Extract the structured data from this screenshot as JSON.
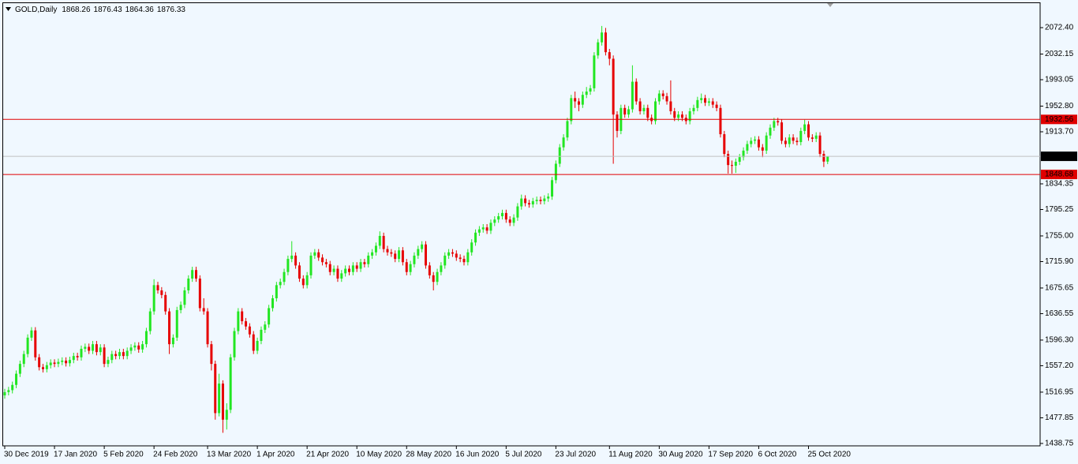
{
  "chart_data": {
    "type": "candlestick",
    "title": "GOLD,Daily",
    "ylim": [
      1435.1,
      2108.5
    ],
    "yticks": [
      {
        "value": 2072.4,
        "label": "2072.40"
      },
      2032.15,
      1993.05,
      {
        "value": 1952.8,
        "label": "1952.80"
      },
      {
        "value": 1913.7,
        "label": "1913.70"
      },
      1834.35,
      1795.25,
      {
        "value": 1755,
        "label": "1755.00"
      },
      {
        "value": 1715.9,
        "label": "1715.90"
      },
      1675.65,
      1636.55,
      {
        "value": 1596.3,
        "label": "1596.30"
      },
      {
        "value": 1557.2,
        "label": "1557.20"
      },
      1516.95,
      1477.85,
      1438.75
    ],
    "hlines": [
      {
        "value": 1932.56,
        "color": "#e00000"
      },
      {
        "value": 1848.68,
        "color": "#e00000"
      }
    ],
    "current_price_color": "#000000",
    "up_color": "#22e622",
    "down_color": "#e60000",
    "background": "#f0f8ff",
    "categories": [
      "30 Dec 2019",
      null,
      null,
      null,
      null,
      null,
      null,
      null,
      null,
      null,
      null,
      null,
      null,
      "17 Jan 2020",
      null,
      null,
      null,
      null,
      null,
      null,
      null,
      null,
      null,
      null,
      null,
      null,
      "5 Feb 2020",
      null,
      null,
      null,
      null,
      null,
      null,
      null,
      null,
      null,
      null,
      null,
      null,
      "24 Feb 2020",
      null,
      null,
      null,
      null,
      null,
      null,
      null,
      null,
      null,
      null,
      null,
      null,
      null,
      "13 Mar 2020",
      null,
      null,
      null,
      null,
      null,
      null,
      null,
      null,
      null,
      null,
      null,
      null,
      "1 Apr 2020",
      null,
      null,
      null,
      null,
      null,
      null,
      null,
      null,
      null,
      null,
      null,
      null,
      "21 Apr 2020",
      null,
      null,
      null,
      null,
      null,
      null,
      null,
      null,
      null,
      null,
      null,
      null,
      "10 May 2020",
      null,
      null,
      null,
      null,
      null,
      null,
      null,
      null,
      null,
      null,
      null,
      null,
      "28 May 2020",
      null,
      null,
      null,
      null,
      null,
      null,
      null,
      null,
      null,
      null,
      null,
      null,
      "16 Jun 2020",
      null,
      null,
      null,
      null,
      null,
      null,
      null,
      null,
      null,
      null,
      null,
      null,
      "5 Jul 2020",
      null,
      null,
      null,
      null,
      null,
      null,
      null,
      null,
      null,
      null,
      null,
      null,
      "23 Jul 2020",
      null,
      null,
      null,
      null,
      null,
      null,
      null,
      null,
      null,
      null,
      null,
      null,
      null,
      "11 Aug 2020",
      null,
      null,
      null,
      null,
      null,
      null,
      null,
      null,
      null,
      null,
      null,
      null,
      "30 Aug 2020",
      null,
      null,
      null,
      null,
      null,
      null,
      null,
      null,
      null,
      null,
      null,
      null,
      "17 Sep 2020",
      null,
      null,
      null,
      null,
      null,
      null,
      null,
      null,
      null,
      null,
      null,
      null,
      "6 Oct 2020",
      null,
      null,
      null,
      null,
      null,
      null,
      null,
      null,
      null,
      null,
      null,
      null,
      "25 Oct 2020",
      null,
      null,
      null,
      null,
      null
    ],
    "open": [
      1512,
      1517,
      1520,
      1528,
      1545,
      1560,
      1575,
      1600,
      1611,
      1570,
      1555,
      1552,
      1558,
      1562,
      1560,
      1563,
      1565,
      1561,
      1566,
      1572,
      1570,
      1583,
      1586,
      1580,
      1590,
      1578,
      1585,
      1560,
      1566,
      1575,
      1572,
      1578,
      1572,
      1580,
      1585,
      1588,
      1582,
      1590,
      1610,
      1640,
      1680,
      1672,
      1665,
      1640,
      1590,
      1600,
      1642,
      1650,
      1672,
      1690,
      1703,
      1690,
      1645,
      1640,
      1590,
      1560,
      1485,
      1530,
      1475,
      1490,
      1570,
      1610,
      1640,
      1625,
      1617,
      1605,
      1580,
      1595,
      1612,
      1620,
      1645,
      1660,
      1680,
      1685,
      1700,
      1720,
      1725,
      1710,
      1690,
      1680,
      1695,
      1725,
      1730,
      1722,
      1715,
      1712,
      1700,
      1705,
      1690,
      1698,
      1705,
      1700,
      1710,
      1705,
      1715,
      1712,
      1725,
      1730,
      1740,
      1755,
      1735,
      1730,
      1728,
      1720,
      1733,
      1715,
      1700,
      1712,
      1725,
      1735,
      1742,
      1710,
      1695,
      1685,
      1700,
      1710,
      1725,
      1730,
      1728,
      1722,
      1720,
      1715,
      1730,
      1745,
      1760,
      1765,
      1768,
      1763,
      1775,
      1780,
      1785,
      1790,
      1780,
      1775,
      1783,
      1800,
      1812,
      1805,
      1803,
      1808,
      1810,
      1808,
      1812,
      1815,
      1840,
      1865,
      1890,
      1905,
      1930,
      1965,
      1960,
      1955,
      1970,
      1975,
      1980,
      2030,
      2050,
      2065,
      2035,
      2025,
      1940,
      1915,
      1950,
      1940,
      1948,
      1990,
      1960,
      1945,
      1950,
      1935,
      1930,
      1960,
      1972,
      1968,
      1960,
      1945,
      1935,
      1940,
      1935,
      1930,
      1945,
      1950,
      1962,
      1965,
      1958,
      1960,
      1955,
      1950,
      1910,
      1880,
      1863,
      1862,
      1868,
      1875,
      1885,
      1895,
      1900,
      1902,
      1890,
      1885,
      1908,
      1920,
      1930,
      1928,
      1900,
      1895,
      1905,
      1900,
      1898,
      1915,
      1925,
      1905,
      1903,
      1908,
      1880,
      1868.26
    ],
    "high": [
      1522,
      1525,
      1533,
      1550,
      1565,
      1580,
      1605,
      1616,
      1616,
      1575,
      1560,
      1563,
      1567,
      1567,
      1568,
      1570,
      1570,
      1571,
      1577,
      1577,
      1588,
      1591,
      1591,
      1595,
      1595,
      1590,
      1590,
      1571,
      1580,
      1580,
      1583,
      1583,
      1585,
      1590,
      1593,
      1593,
      1595,
      1615,
      1645,
      1689,
      1685,
      1677,
      1670,
      1645,
      1605,
      1647,
      1655,
      1677,
      1695,
      1708,
      1708,
      1695,
      1660,
      1645,
      1595,
      1565,
      1545,
      1535,
      1500,
      1575,
      1615,
      1645,
      1645,
      1630,
      1622,
      1610,
      1600,
      1617,
      1625,
      1650,
      1665,
      1685,
      1690,
      1705,
      1725,
      1747,
      1730,
      1715,
      1695,
      1700,
      1730,
      1735,
      1735,
      1727,
      1720,
      1717,
      1710,
      1710,
      1703,
      1710,
      1710,
      1715,
      1715,
      1720,
      1720,
      1730,
      1735,
      1745,
      1762,
      1760,
      1740,
      1735,
      1733,
      1738,
      1738,
      1720,
      1717,
      1730,
      1740,
      1747,
      1747,
      1715,
      1700,
      1705,
      1715,
      1730,
      1735,
      1735,
      1733,
      1727,
      1725,
      1735,
      1750,
      1765,
      1770,
      1773,
      1773,
      1780,
      1785,
      1790,
      1795,
      1795,
      1785,
      1788,
      1805,
      1818,
      1817,
      1810,
      1813,
      1815,
      1815,
      1817,
      1820,
      1845,
      1870,
      1895,
      1910,
      1935,
      1970,
      1975,
      1965,
      1975,
      1982,
      1985,
      2035,
      2055,
      2075,
      2072,
      2040,
      2030,
      1945,
      1955,
      1955,
      1953,
      2015,
      1995,
      1965,
      1955,
      1955,
      1940,
      1965,
      1977,
      1977,
      1973,
      1992,
      1950,
      1945,
      1945,
      1940,
      1950,
      1955,
      1967,
      1972,
      1970,
      1965,
      1965,
      1960,
      1955,
      1915,
      1885,
      1870,
      1873,
      1880,
      1890,
      1900,
      1905,
      1907,
      1907,
      1895,
      1913,
      1925,
      1935,
      1935,
      1933,
      1905,
      1910,
      1910,
      1905,
      1920,
      1932,
      1930,
      1910,
      1913,
      1913,
      1885,
      1876.43
    ],
    "low": [
      1507,
      1512,
      1515,
      1523,
      1540,
      1555,
      1570,
      1595,
      1565,
      1550,
      1547,
      1547,
      1553,
      1555,
      1555,
      1558,
      1556,
      1556,
      1561,
      1565,
      1565,
      1578,
      1575,
      1575,
      1573,
      1573,
      1555,
      1555,
      1561,
      1567,
      1567,
      1567,
      1567,
      1575,
      1580,
      1577,
      1577,
      1585,
      1605,
      1635,
      1667,
      1660,
      1635,
      1575,
      1585,
      1595,
      1637,
      1645,
      1667,
      1685,
      1685,
      1640,
      1635,
      1585,
      1550,
      1475,
      1480,
      1455,
      1460,
      1485,
      1565,
      1605,
      1620,
      1612,
      1600,
      1575,
      1575,
      1590,
      1607,
      1615,
      1640,
      1655,
      1675,
      1680,
      1695,
      1715,
      1705,
      1685,
      1675,
      1675,
      1690,
      1720,
      1717,
      1710,
      1707,
      1695,
      1695,
      1685,
      1685,
      1693,
      1695,
      1695,
      1700,
      1700,
      1707,
      1707,
      1720,
      1725,
      1735,
      1730,
      1725,
      1723,
      1715,
      1715,
      1710,
      1695,
      1695,
      1707,
      1720,
      1730,
      1705,
      1690,
      1672,
      1680,
      1695,
      1705,
      1720,
      1723,
      1717,
      1715,
      1710,
      1710,
      1725,
      1740,
      1755,
      1760,
      1758,
      1758,
      1770,
      1775,
      1780,
      1775,
      1770,
      1770,
      1778,
      1795,
      1800,
      1798,
      1798,
      1803,
      1803,
      1803,
      1807,
      1810,
      1835,
      1860,
      1885,
      1900,
      1925,
      1950,
      1945,
      1950,
      1965,
      1970,
      1975,
      2025,
      2045,
      2030,
      2015,
      1865,
      1905,
      1910,
      1935,
      1935,
      1943,
      1955,
      1940,
      1940,
      1930,
      1925,
      1925,
      1955,
      1963,
      1955,
      1940,
      1930,
      1930,
      1930,
      1925,
      1925,
      1940,
      1945,
      1957,
      1953,
      1953,
      1950,
      1945,
      1905,
      1875,
      1850,
      1850,
      1851,
      1863,
      1870,
      1880,
      1890,
      1895,
      1885,
      1875,
      1880,
      1903,
      1915,
      1923,
      1895,
      1890,
      1890,
      1895,
      1893,
      1893,
      1910,
      1900,
      1898,
      1898,
      1875,
      1860,
      1864.36
    ],
    "close": [
      1517,
      1520,
      1528,
      1545,
      1560,
      1575,
      1600,
      1611,
      1570,
      1555,
      1552,
      1558,
      1562,
      1560,
      1563,
      1565,
      1561,
      1566,
      1572,
      1570,
      1583,
      1586,
      1580,
      1590,
      1578,
      1585,
      1560,
      1566,
      1575,
      1572,
      1578,
      1572,
      1580,
      1585,
      1588,
      1582,
      1590,
      1610,
      1640,
      1680,
      1672,
      1665,
      1640,
      1590,
      1600,
      1642,
      1650,
      1672,
      1690,
      1703,
      1690,
      1645,
      1640,
      1590,
      1560,
      1485,
      1530,
      1475,
      1490,
      1570,
      1610,
      1640,
      1625,
      1617,
      1605,
      1580,
      1595,
      1612,
      1620,
      1645,
      1660,
      1680,
      1685,
      1700,
      1720,
      1725,
      1710,
      1690,
      1680,
      1695,
      1725,
      1730,
      1722,
      1715,
      1712,
      1700,
      1705,
      1690,
      1698,
      1705,
      1700,
      1710,
      1705,
      1715,
      1712,
      1725,
      1730,
      1740,
      1755,
      1735,
      1730,
      1728,
      1720,
      1733,
      1715,
      1700,
      1712,
      1725,
      1735,
      1742,
      1710,
      1695,
      1685,
      1700,
      1710,
      1725,
      1730,
      1728,
      1722,
      1720,
      1715,
      1730,
      1745,
      1760,
      1765,
      1768,
      1763,
      1775,
      1780,
      1785,
      1790,
      1780,
      1775,
      1783,
      1800,
      1812,
      1805,
      1803,
      1808,
      1810,
      1808,
      1812,
      1815,
      1840,
      1865,
      1890,
      1905,
      1930,
      1965,
      1960,
      1955,
      1970,
      1975,
      1980,
      2030,
      2050,
      2065,
      2035,
      2025,
      1940,
      1915,
      1950,
      1940,
      1948,
      1990,
      1960,
      1945,
      1950,
      1935,
      1930,
      1960,
      1972,
      1968,
      1960,
      1945,
      1935,
      1940,
      1935,
      1930,
      1945,
      1950,
      1962,
      1965,
      1958,
      1960,
      1955,
      1950,
      1910,
      1880,
      1863,
      1862,
      1868,
      1875,
      1885,
      1895,
      1900,
      1902,
      1890,
      1885,
      1908,
      1920,
      1930,
      1928,
      1900,
      1895,
      1905,
      1900,
      1898,
      1915,
      1925,
      1905,
      1903,
      1908,
      1880,
      1868.26,
      1876.33
    ]
  }
}
